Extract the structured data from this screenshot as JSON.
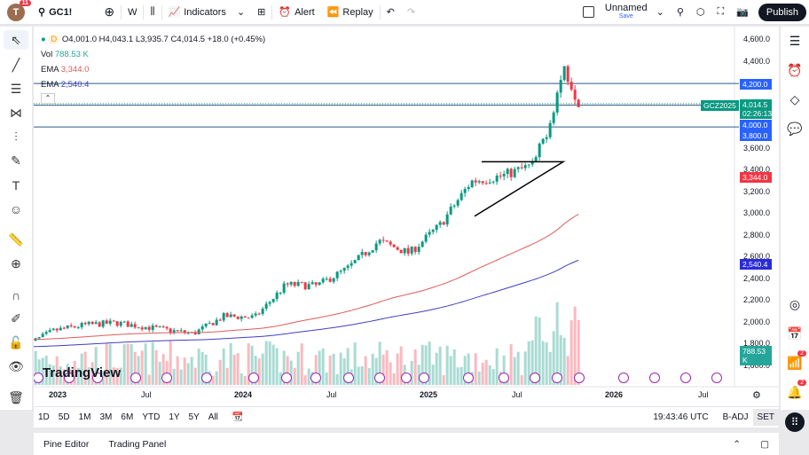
{
  "header": {
    "avatar": "T",
    "avatar_badge": "11",
    "symbol": "GC1!",
    "interval": "W",
    "indicators": "Indicators",
    "alert": "Alert",
    "replay": "Replay",
    "layout_name": "Unnamed",
    "layout_sub": "Save",
    "publish": "Publish"
  },
  "legend": {
    "timeframe": "D",
    "ohlc": "O4,001.0 H4,043.1 L3,935.7 C4,014.5 +18.0 (+0.45%)",
    "vol_label": "Vol",
    "vol_value": "788.53 K",
    "ema1_label": "EMA",
    "ema1_value": "3,344.0",
    "ema2_label": "EMA",
    "ema2_value": "2,540.4"
  },
  "price_axis": [
    "4,600.0",
    "4,400.0",
    "3,600.0",
    "3,400.0",
    "3,200.0",
    "3,000.0",
    "2,800.0",
    "2,600.0",
    "2,400.0",
    "2,200.0",
    "2,000.0",
    "1,800.0",
    "1,600.0"
  ],
  "tags": {
    "line1": "4,200.0",
    "symbol_tag": "GCZ2025",
    "last": "4,014.5",
    "countdown": "02:26:13",
    "line2": "4,000.0",
    "line3": "3,800.0",
    "ema1": "3,344.0",
    "ema2": "2,540.4",
    "vol": "788.53 K"
  },
  "time_axis": [
    "2023",
    "Jul",
    "2024",
    "Jul",
    "2025",
    "Jul",
    "2026",
    "Jul"
  ],
  "watermark": "TradingView",
  "ranges": [
    "1D",
    "5D",
    "1M",
    "3M",
    "6M",
    "YTD",
    "1Y",
    "5Y",
    "All"
  ],
  "clock": "19:43:46 UTC",
  "badj": "B-ADJ",
  "set": "SET",
  "footer": {
    "pine": "Pine Editor",
    "panel": "Trading Panel"
  },
  "right_badges": [
    "2",
    "2"
  ],
  "colors": {
    "up": "#089981",
    "down": "#f23645",
    "ema1": "#e05a5a",
    "ema2": "#3f3fbf",
    "hline": "#2a5a8a",
    "tag_blue": "#2962ff"
  },
  "chart_data": {
    "type": "candlestick",
    "monthly_closes": [
      [
        "2022-11",
        1780
      ],
      [
        "2023-01",
        1930
      ],
      [
        "2023-03",
        1980
      ],
      [
        "2023-05",
        2000
      ],
      [
        "2023-07",
        1960
      ],
      [
        "2023-10",
        1900
      ],
      [
        "2023-12",
        2060
      ],
      [
        "2024-02",
        2050
      ],
      [
        "2024-04",
        2350
      ],
      [
        "2024-06",
        2340
      ],
      [
        "2024-08",
        2500
      ],
      [
        "2024-10",
        2750
      ],
      [
        "2024-12",
        2640
      ],
      [
        "2025-02",
        2900
      ],
      [
        "2025-04",
        3300
      ],
      [
        "2025-06",
        3350
      ],
      [
        "2025-08",
        3450
      ],
      [
        "2025-09",
        3800
      ],
      [
        "2025-10",
        4350
      ],
      [
        "2025-11",
        4014.5
      ]
    ],
    "horizontal_lines": [
      4200,
      4000,
      3800
    ],
    "ylim": [
      1600,
      4600
    ]
  }
}
